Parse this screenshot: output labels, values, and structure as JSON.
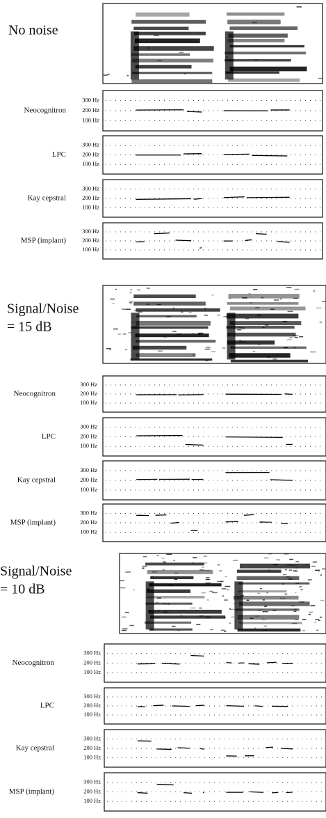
{
  "sections": [
    {
      "title_lines": [
        "No noise"
      ],
      "panels": [
        {
          "label": "Neocognitron",
          "ticks": [
            "300 Hz",
            "200 Hz",
            "100 Hz"
          ]
        },
        {
          "label": "LPC",
          "ticks": [
            "300 Hz",
            "200 Hz",
            "100 Hz"
          ]
        },
        {
          "label": "Kay cepstral",
          "ticks": [
            "300 Hz",
            "200 Hz",
            "100 Hz"
          ]
        },
        {
          "label": "MSP (implant)",
          "ticks": [
            "300 Hz",
            "200 Hz",
            "100 Hz"
          ]
        }
      ]
    },
    {
      "title_lines": [
        "Signal/Noise",
        "= 15 dB"
      ],
      "panels": [
        {
          "label": "Neocognitron",
          "ticks": [
            "300 Hz",
            "200 Hz",
            "100 Hz"
          ]
        },
        {
          "label": "LPC",
          "ticks": [
            "300 Hz",
            "200 Hz",
            "100 Hz"
          ]
        },
        {
          "label": "Kay cepstral",
          "ticks": [
            "300 Hz",
            "200 Hz",
            "100 Hz"
          ]
        },
        {
          "label": "MSP (implant)",
          "ticks": [
            "300 Hz",
            "200 Hz",
            "100 Hz"
          ]
        }
      ]
    },
    {
      "title_lines": [
        "Signal/Noise",
        "= 10 dB"
      ],
      "panels": [
        {
          "label": "Neocognitron",
          "ticks": [
            "300 Hz",
            "200 Hz",
            "100 Hz"
          ]
        },
        {
          "label": "LPC",
          "ticks": [
            "300 Hz",
            "200 Hz",
            "100 Hz"
          ]
        },
        {
          "label": "Kay cepstral",
          "ticks": [
            "300 Hz",
            "200 Hz",
            "100 Hz"
          ]
        },
        {
          "label": "MSP (implant)",
          "ticks": [
            "300 Hz",
            "200 Hz",
            "100 Hz"
          ]
        }
      ]
    }
  ]
}
